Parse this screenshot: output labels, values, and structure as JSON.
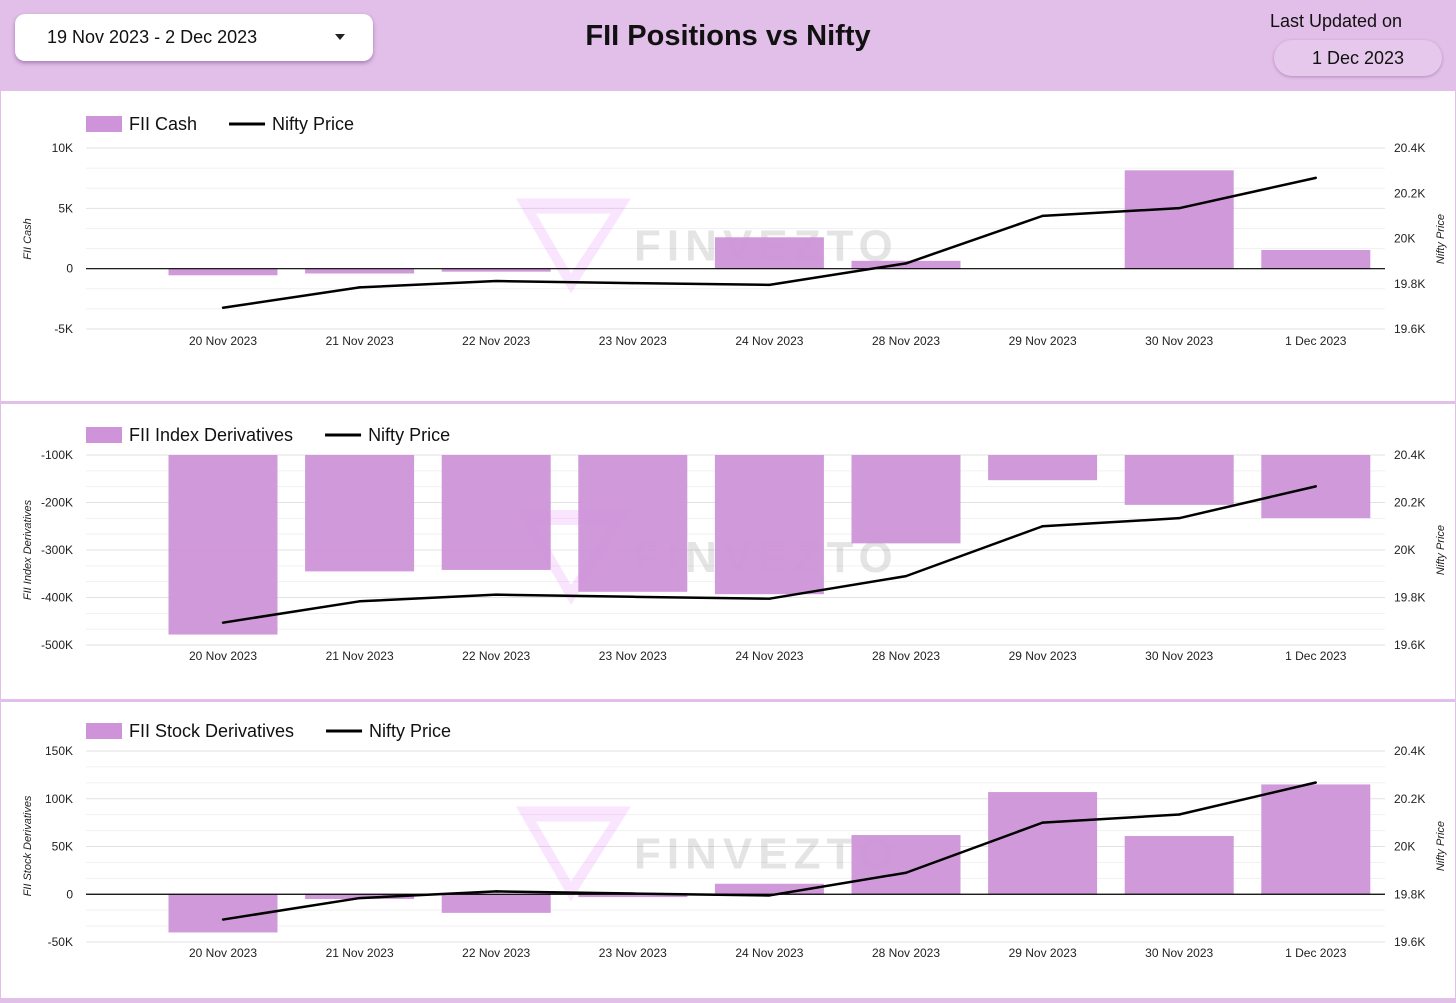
{
  "header": {
    "date_range": "19 Nov 2023 - 2 Dec 2023",
    "title": "FII Positions vs Nifty",
    "last_updated_label": "Last Updated on",
    "last_updated_value": "1 Dec 2023"
  },
  "watermark": {
    "text": "FINVEZTO"
  },
  "colors": {
    "bar": "#ce93d8",
    "line": "#000000",
    "background": "#e2bfe8",
    "grid": "#e0e0e0"
  },
  "chart_data": [
    {
      "type": "bar",
      "categories": [
        "20 Nov 2023",
        "21 Nov 2023",
        "22 Nov 2023",
        "23 Nov 2023",
        "24 Nov 2023",
        "28 Nov 2023",
        "29 Nov 2023",
        "30 Nov 2023",
        "1 Dec 2023"
      ],
      "series": [
        {
          "name": "FII Cash",
          "kind": "bar",
          "axis": "left",
          "values": [
            -550,
            -400,
            -250,
            0,
            2600,
            650,
            0,
            8150,
            1550
          ]
        },
        {
          "name": "Nifty Price",
          "kind": "line",
          "axis": "right",
          "values": [
            19694,
            19784,
            19812,
            19803,
            19795,
            19890,
            20100,
            20134,
            20268
          ]
        }
      ],
      "ylabel": "FII Cash",
      "y2label": "Nifty Price",
      "ylim": [
        -5000,
        10000
      ],
      "y2lim": [
        19600,
        20400
      ],
      "yticks": [
        "10K",
        "5K",
        "0",
        "-5K"
      ],
      "y2ticks": [
        "20.4K",
        "20.2K",
        "20K",
        "19.8K",
        "19.6K"
      ],
      "legend": "top-left",
      "grid": true
    },
    {
      "type": "bar",
      "categories": [
        "20 Nov 2023",
        "21 Nov 2023",
        "22 Nov 2023",
        "23 Nov 2023",
        "24 Nov 2023",
        "28 Nov 2023",
        "29 Nov 2023",
        "30 Nov 2023",
        "1 Dec 2023"
      ],
      "series": [
        {
          "name": "FII Index Derivatives",
          "kind": "bar",
          "axis": "left",
          "values": [
            -478000,
            -345000,
            -342000,
            -388000,
            -393000,
            -286000,
            -153000,
            -205000,
            -233000
          ]
        },
        {
          "name": "Nifty Price",
          "kind": "line",
          "axis": "right",
          "values": [
            19694,
            19784,
            19812,
            19803,
            19795,
            19890,
            20100,
            20134,
            20268
          ]
        }
      ],
      "ylabel": "FII Index Derivatives",
      "y2label": "Nifty Price",
      "ylim": [
        -500000,
        -100000
      ],
      "y2lim": [
        19600,
        20400
      ],
      "yticks": [
        "-100K",
        "-200K",
        "-300K",
        "-400K",
        "-500K"
      ],
      "y2ticks": [
        "20.4K",
        "20.2K",
        "20K",
        "19.8K",
        "19.6K"
      ],
      "legend": "top-left",
      "grid": true
    },
    {
      "type": "bar",
      "categories": [
        "20 Nov 2023",
        "21 Nov 2023",
        "22 Nov 2023",
        "23 Nov 2023",
        "24 Nov 2023",
        "28 Nov 2023",
        "29 Nov 2023",
        "30 Nov 2023",
        "1 Dec 2023"
      ],
      "series": [
        {
          "name": "FII Stock Derivatives",
          "kind": "bar",
          "axis": "left",
          "values": [
            -40000,
            -5000,
            -19500,
            -3000,
            11000,
            62000,
            107000,
            61000,
            115000
          ]
        },
        {
          "name": "Nifty Price",
          "kind": "line",
          "axis": "right",
          "values": [
            19694,
            19784,
            19812,
            19803,
            19795,
            19890,
            20100,
            20134,
            20268
          ]
        }
      ],
      "ylabel": "FII Stock Derivatives",
      "y2label": "Nifty Price",
      "ylim": [
        -50000,
        150000
      ],
      "y2lim": [
        19600,
        20400
      ],
      "yticks": [
        "150K",
        "100K",
        "50K",
        "0",
        "-50K"
      ],
      "y2ticks": [
        "20.4K",
        "20.2K",
        "20K",
        "19.8K",
        "19.6K"
      ],
      "legend": "top-left",
      "grid": true
    }
  ]
}
